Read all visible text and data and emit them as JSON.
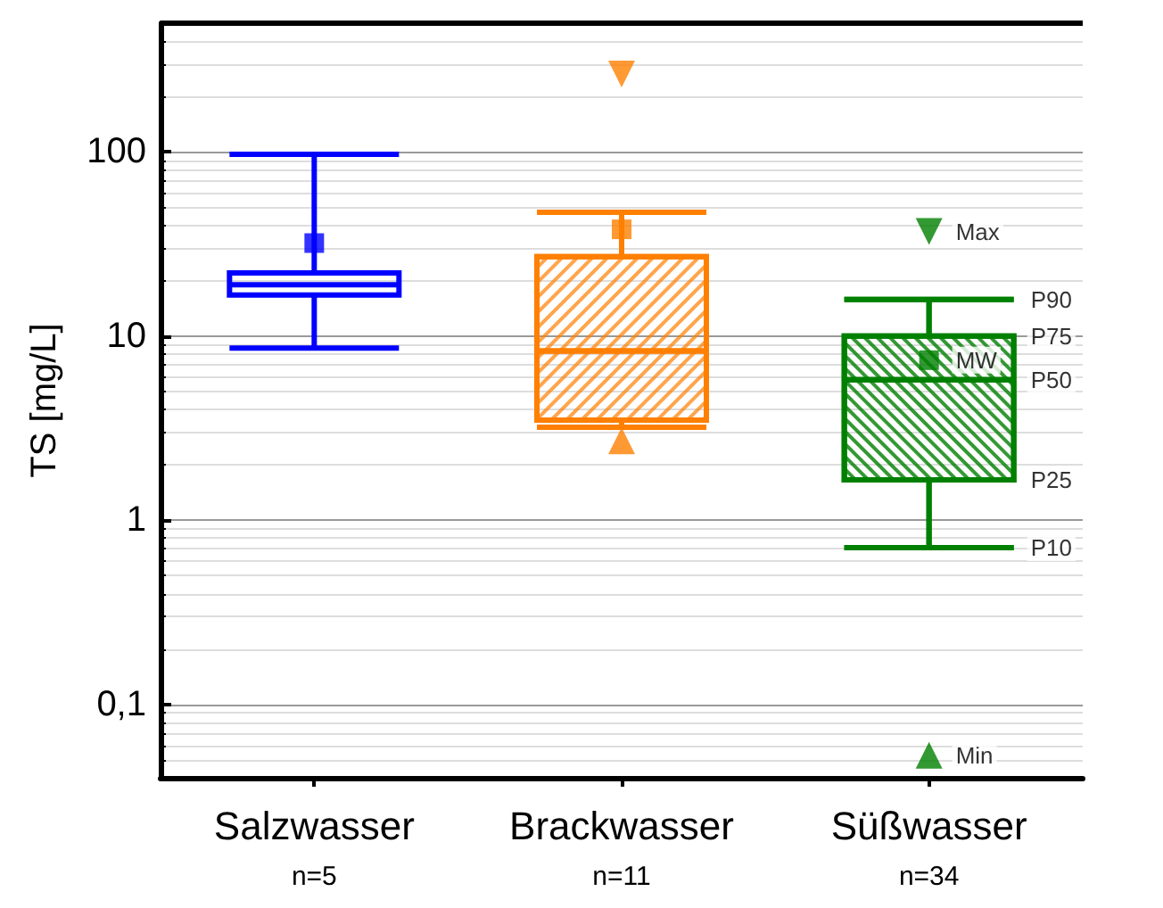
{
  "chart_data": {
    "type": "box",
    "ylabel": "TS [mg/L]",
    "categories": [
      "Salzwasser",
      "Brackwasser",
      "Süßwasser"
    ],
    "colors": [
      "#0000ff",
      "#ff7f00",
      "#008000"
    ],
    "boxes": [
      {
        "low": 8.6,
        "q1": 16.7,
        "median": 19,
        "q3": 22,
        "high": 97,
        "mean": 32
      },
      {
        "low": 3.2,
        "q1": 3.5,
        "median": 8.3,
        "q3": 27,
        "high": 47,
        "mean": 38,
        "outliers": [
          265,
          2.7
        ]
      },
      {
        "low": 0.71,
        "q1": 1.66,
        "median": 5.8,
        "q3": 10,
        "high": 15.8,
        "mean": 7.4,
        "outliers": [
          37,
          0.053
        ]
      }
    ],
    "log": "y",
    "ylim": [
      0.04,
      500
    ],
    "yticks": [
      {
        "value": 0.1,
        "label": "0,1"
      },
      1,
      10,
      100
    ],
    "grid": "y",
    "annotations": [
      "Max",
      "P90",
      "P75",
      "MW",
      "P50",
      "P25",
      "P10",
      "Min",
      "n=5",
      "n=11",
      "n=34"
    ]
  }
}
